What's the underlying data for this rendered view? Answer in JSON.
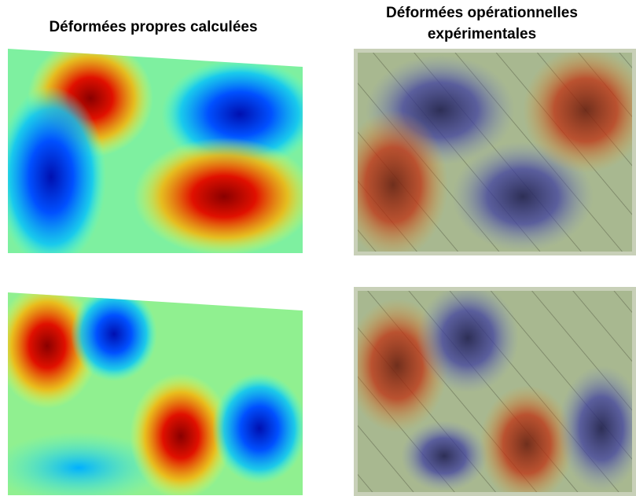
{
  "header": {
    "left_title": "Déformées propres calculées",
    "right_title": [
      "Déformées opérationnelles",
      "expérimentales"
    ]
  }
}
